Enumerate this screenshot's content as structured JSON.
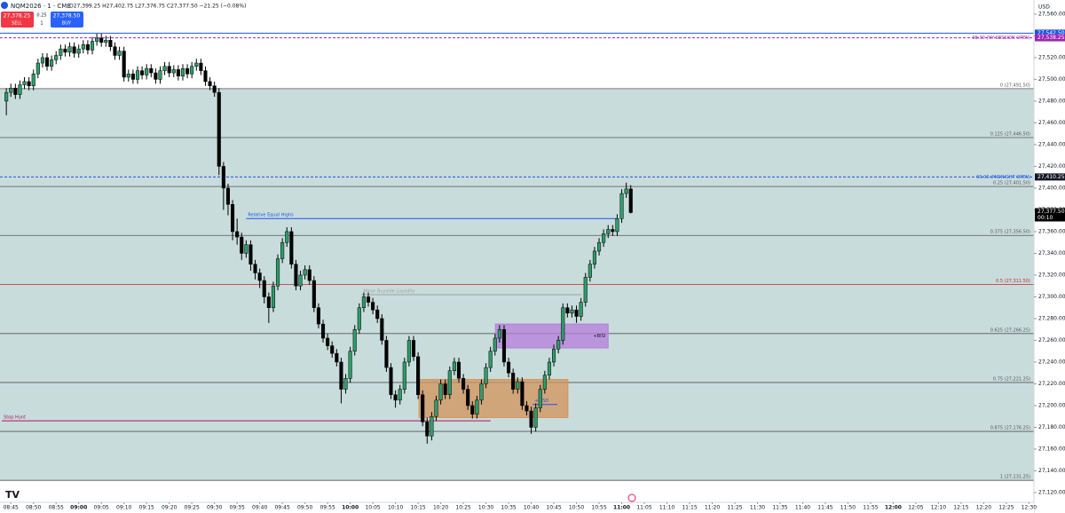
{
  "header": {
    "symbol": "NQM2026 · 1 · CME",
    "ohlc": "O27,399.25 H27,402.75 L27,376.75 C27,377.50 −21.25 (−0.08%)",
    "sell_price": "27,378.25",
    "sell": "SELL",
    "spread": "0.25",
    "quantity": "1",
    "buy_price": "27,378.50",
    "buy": "BUY",
    "currency": "USD"
  },
  "chart_data": {
    "type": "candlestick",
    "up_color": "#2e9d6a",
    "down_color": "#000000",
    "fib_fill": "#c8dcdc",
    "grid": false,
    "x": [
      524,
      525,
      526,
      527,
      528,
      529,
      530,
      531,
      532,
      533,
      534,
      535,
      536,
      537,
      538,
      539,
      540,
      541,
      542,
      543,
      544,
      545,
      546,
      547,
      548,
      549,
      550,
      551,
      552,
      553,
      554,
      555,
      556,
      557,
      558,
      559,
      560,
      561,
      562,
      563,
      564,
      565,
      566,
      567,
      568,
      569,
      570,
      571,
      572,
      573,
      574,
      575,
      576,
      577,
      578,
      579,
      580,
      581,
      582,
      583,
      584,
      585,
      586,
      587,
      588,
      589,
      590,
      591,
      592,
      593,
      594,
      595,
      596,
      597,
      598,
      599,
      600,
      601,
      602,
      603,
      604,
      605,
      606,
      607,
      608,
      609,
      610,
      611,
      612,
      613,
      614,
      615,
      616,
      617,
      618,
      619,
      620,
      621,
      622,
      623,
      624,
      625,
      626,
      627,
      628,
      629,
      630,
      631,
      632,
      633,
      634,
      635,
      636,
      637,
      638,
      639,
      640,
      641,
      642,
      643,
      644,
      645,
      646,
      647,
      648,
      649,
      650,
      651,
      652,
      653,
      654,
      655,
      656,
      657,
      658,
      659,
      660,
      661,
      662
    ],
    "open": [
      27480,
      27488,
      27492,
      27486,
      27495,
      27498,
      27494,
      27505,
      27515,
      27520,
      27512,
      27518,
      27522,
      27528,
      27525,
      27530,
      27524,
      27528,
      27532,
      27527,
      27535,
      27538,
      27534,
      27536,
      27530,
      27522,
      27526,
      27502,
      27505,
      27500,
      27508,
      27504,
      27510,
      27506,
      27500,
      27508,
      27512,
      27506,
      27509,
      27503,
      27510,
      27505,
      27512,
      27515,
      27508,
      27498,
      27494,
      27488,
      27420,
      27400,
      27385,
      27360,
      27355,
      27340,
      27348,
      27330,
      27322,
      27315,
      27300,
      27290,
      27310,
      27335,
      27350,
      27360,
      27330,
      27310,
      27320,
      27325,
      27315,
      27290,
      27275,
      27262,
      27255,
      27248,
      27240,
      27215,
      27225,
      27250,
      27270,
      27290,
      27300,
      27295,
      27288,
      27280,
      27260,
      27235,
      27210,
      27205,
      27215,
      27240,
      27260,
      27245,
      27210,
      27185,
      27172,
      27190,
      27205,
      27220,
      27210,
      27232,
      27240,
      27225,
      27215,
      27200,
      27192,
      27205,
      27220,
      27235,
      27250,
      27262,
      27270,
      27240,
      27230,
      27215,
      27222,
      27200,
      27195,
      27180,
      27198,
      27215,
      27228,
      27240,
      27252,
      27260,
      27290,
      27285,
      27288,
      27282,
      27295,
      27318,
      27330,
      27342,
      27350,
      27358,
      27362,
      27360,
      27372,
      27395,
      27399.25
    ],
    "high": [
      27492,
      27496,
      27496,
      27499,
      27502,
      27502,
      27509,
      27519,
      27524,
      27524,
      27522,
      27526,
      27532,
      27532,
      27534,
      27534,
      27532,
      27536,
      27536,
      27539,
      27542,
      27542,
      27540,
      27540,
      27534,
      27530,
      27530,
      27509,
      27509,
      27512,
      27512,
      27514,
      27514,
      27510,
      27512,
      27516,
      27516,
      27513,
      27513,
      27514,
      27514,
      27516,
      27519,
      27519,
      27512,
      27502,
      27498,
      27492,
      27424,
      27404,
      27389,
      27372,
      27359,
      27352,
      27352,
      27334,
      27326,
      27319,
      27304,
      27314,
      27339,
      27354,
      27364,
      27364,
      27334,
      27324,
      27329,
      27329,
      27319,
      27294,
      27279,
      27266,
      27259,
      27252,
      27244,
      27229,
      27254,
      27274,
      27294,
      27304,
      27304,
      27299,
      27292,
      27284,
      27264,
      27239,
      27214,
      27219,
      27244,
      27264,
      27264,
      27249,
      27214,
      27189,
      27194,
      27209,
      27224,
      27224,
      27236,
      27244,
      27244,
      27229,
      27219,
      27204,
      27209,
      27224,
      27239,
      27254,
      27266,
      27274,
      27274,
      27244,
      27234,
      27226,
      27226,
      27204,
      27199,
      27202,
      27219,
      27232,
      27244,
      27256,
      27264,
      27294,
      27294,
      27292,
      27292,
      27299,
      27322,
      27334,
      27346,
      27354,
      27362,
      27366,
      27366,
      27376,
      27399,
      27405,
      27402.75
    ],
    "low": [
      27467,
      27484,
      27482,
      27482,
      27491,
      27490,
      27490,
      27501,
      27511,
      27508,
      27508,
      27514,
      27518,
      27521,
      27521,
      27520,
      27520,
      27524,
      27523,
      27523,
      27531,
      27530,
      27530,
      27526,
      27518,
      27518,
      27498,
      27498,
      27496,
      27496,
      27500,
      27500,
      27502,
      27496,
      27496,
      27504,
      27502,
      27502,
      27499,
      27499,
      27501,
      27501,
      27508,
      27504,
      27494,
      27490,
      27484,
      27412,
      27380,
      27375,
      27352,
      27348,
      27334,
      27336,
      27324,
      27316,
      27308,
      27294,
      27276,
      27286,
      27306,
      27331,
      27346,
      27326,
      27306,
      27306,
      27316,
      27311,
      27286,
      27271,
      27258,
      27251,
      27244,
      27236,
      27202,
      27211,
      27221,
      27246,
      27266,
      27286,
      27291,
      27284,
      27276,
      27256,
      27231,
      27206,
      27198,
      27201,
      27211,
      27236,
      27241,
      27206,
      27181,
      27165,
      27168,
      27186,
      27201,
      27206,
      27206,
      27228,
      27221,
      27211,
      27196,
      27188,
      27188,
      27201,
      27216,
      27231,
      27246,
      27258,
      27236,
      27226,
      27211,
      27211,
      27196,
      27191,
      27174,
      27176,
      27194,
      27211,
      27224,
      27236,
      27248,
      27256,
      27281,
      27281,
      27276,
      27278,
      27291,
      27314,
      27326,
      27338,
      27346,
      27354,
      27356,
      27356,
      27368,
      27391,
      27376.75
    ],
    "close": [
      27488,
      27492,
      27486,
      27495,
      27498,
      27494,
      27505,
      27515,
      27520,
      27512,
      27518,
      27522,
      27528,
      27525,
      27530,
      27524,
      27528,
      27532,
      27527,
      27535,
      27538,
      27534,
      27536,
      27530,
      27522,
      27526,
      27502,
      27505,
      27500,
      27508,
      27504,
      27510,
      27506,
      27500,
      27508,
      27512,
      27506,
      27509,
      27503,
      27510,
      27505,
      27512,
      27515,
      27508,
      27498,
      27494,
      27488,
      27420,
      27400,
      27385,
      27360,
      27355,
      27340,
      27348,
      27330,
      27322,
      27315,
      27300,
      27290,
      27310,
      27335,
      27350,
      27360,
      27330,
      27310,
      27320,
      27325,
      27315,
      27290,
      27275,
      27262,
      27255,
      27248,
      27240,
      27215,
      27225,
      27250,
      27270,
      27290,
      27300,
      27295,
      27288,
      27280,
      27260,
      27235,
      27210,
      27205,
      27215,
      27240,
      27260,
      27245,
      27210,
      27185,
      27172,
      27190,
      27205,
      27220,
      27210,
      27232,
      27240,
      27225,
      27215,
      27200,
      27192,
      27205,
      27220,
      27235,
      27250,
      27262,
      27270,
      27240,
      27230,
      27215,
      27222,
      27200,
      27195,
      27180,
      27198,
      27215,
      27228,
      27240,
      27252,
      27260,
      27290,
      27285,
      27288,
      27282,
      27295,
      27318,
      27330,
      27342,
      27350,
      27358,
      27362,
      27360,
      27372,
      27395,
      27399.25,
      27377.5
    ],
    "xlim": [
      522.6,
      751.1
    ],
    "xticks": [
      {
        "value": 525,
        "label": "08:45"
      },
      {
        "value": 530,
        "label": "08:50"
      },
      {
        "value": 535,
        "label": "08:55"
      },
      {
        "value": 540,
        "label": "09:00"
      },
      {
        "value": 545,
        "label": "09:05"
      },
      {
        "value": 550,
        "label": "09:10"
      },
      {
        "value": 555,
        "label": "09:15"
      },
      {
        "value": 560,
        "label": "09:20"
      },
      {
        "value": 565,
        "label": "09:25"
      },
      {
        "value": 570,
        "label": "09:30"
      },
      {
        "value": 575,
        "label": "09:35"
      },
      {
        "value": 580,
        "label": "09:40"
      },
      {
        "value": 585,
        "label": "09:45"
      },
      {
        "value": 590,
        "label": "09:50"
      },
      {
        "value": 595,
        "label": "09:55"
      },
      {
        "value": 600,
        "label": "10:00"
      },
      {
        "value": 605,
        "label": "10:05"
      },
      {
        "value": 610,
        "label": "10:10"
      },
      {
        "value": 615,
        "label": "10:15"
      },
      {
        "value": 620,
        "label": "10:20"
      },
      {
        "value": 625,
        "label": "10:25"
      },
      {
        "value": 630,
        "label": "10:30"
      },
      {
        "value": 635,
        "label": "10:35"
      },
      {
        "value": 640,
        "label": "10:40"
      },
      {
        "value": 645,
        "label": "10:45"
      },
      {
        "value": 650,
        "label": "10:50"
      },
      {
        "value": 655,
        "label": "10:55"
      },
      {
        "value": 660,
        "label": "11:00"
      },
      {
        "value": 665,
        "label": "11:05"
      },
      {
        "value": 670,
        "label": "11:10"
      },
      {
        "value": 675,
        "label": "11:15"
      },
      {
        "value": 680,
        "label": "11:20"
      },
      {
        "value": 685,
        "label": "11:25"
      },
      {
        "value": 690,
        "label": "11:30"
      },
      {
        "value": 695,
        "label": "11:35"
      },
      {
        "value": 700,
        "label": "11:40"
      },
      {
        "value": 705,
        "label": "11:45"
      },
      {
        "value": 710,
        "label": "11:50"
      },
      {
        "value": 715,
        "label": "11:55"
      },
      {
        "value": 720,
        "label": "12:00"
      },
      {
        "value": 725,
        "label": "12:05"
      },
      {
        "value": 730,
        "label": "12:10"
      },
      {
        "value": 735,
        "label": "12:15"
      },
      {
        "value": 740,
        "label": "12:20"
      },
      {
        "value": 745,
        "label": "12:25"
      },
      {
        "value": 750,
        "label": "12:30"
      }
    ],
    "ylim": [
      27111,
      27573
    ],
    "yticks": [
      {
        "value": 27560,
        "label": "27,560.00"
      },
      {
        "value": 27540,
        "label": "27,540.00"
      },
      {
        "value": 27520,
        "label": "27,520.00"
      },
      {
        "value": 27500,
        "label": "27,500.00"
      },
      {
        "value": 27480,
        "label": "27,480.00"
      },
      {
        "value": 27460,
        "label": "27,460.00"
      },
      {
        "value": 27440,
        "label": "27,440.00"
      },
      {
        "value": 27420,
        "label": "27,420.00"
      },
      {
        "value": 27400,
        "label": "27,400.00"
      },
      {
        "value": 27380,
        "label": "27,380.00"
      },
      {
        "value": 27360,
        "label": "27,360.00"
      },
      {
        "value": 27340,
        "label": "27,340.00"
      },
      {
        "value": 27320,
        "label": "27,320.00"
      },
      {
        "value": 27300,
        "label": "27,300.00"
      },
      {
        "value": 27280,
        "label": "27,280.00"
      },
      {
        "value": 27260,
        "label": "27,260.00"
      },
      {
        "value": 27240,
        "label": "27,240.00"
      },
      {
        "value": 27220,
        "label": "27,220.00"
      },
      {
        "value": 27200,
        "label": "27,200.00"
      },
      {
        "value": 27180,
        "label": "27,180.00"
      },
      {
        "value": 27160,
        "label": "27,160.00"
      },
      {
        "value": 27140,
        "label": "27,140.00"
      },
      {
        "value": 27120,
        "label": "27,120.00"
      }
    ],
    "levels": [
      {
        "label": "0 (27,491.50)",
        "value": 27491.5,
        "color": "#555555"
      },
      {
        "label": "0.125 (27,446.50)",
        "value": 27446.5,
        "color": "#555555"
      },
      {
        "label": "0.25 (27,401.50)",
        "value": 27401.5,
        "color": "#555555"
      },
      {
        "label": "0.375 (27,356.50)",
        "value": 27356.5,
        "color": "#555555"
      },
      {
        "label": "0.5 (27,311.50)",
        "value": 27311.5,
        "color": "#c62828"
      },
      {
        "label": "0.625 (27,266.25)",
        "value": 27266.25,
        "color": "#555555"
      },
      {
        "label": "0.75 (27,221.25)",
        "value": 27221.25,
        "color": "#555555"
      },
      {
        "label": "0.875 (27,176.25)",
        "value": 27176.25,
        "color": "#555555"
      },
      {
        "label": "1 (27,131.25)",
        "value": 27131.25,
        "color": "#555555"
      }
    ],
    "price_lines": [
      {
        "value": 27542.5,
        "price_label": "27,542.50",
        "color": "#1e53e5",
        "dashed": false
      },
      {
        "label": "08:30 (NY SESSION OPEN)",
        "value": 27538.25,
        "price_label": "27,538.25",
        "color": "#9c27b0",
        "dashed": true
      },
      {
        "label": "00:00 (MIDNIGHT OPEN)",
        "value": 27410.25,
        "price_label": "27,410.25",
        "color": "#1e53e5",
        "dashed": true
      }
    ],
    "last_price": {
      "value": 27377.5,
      "price_label": "27,377.50",
      "countdown": "00:10"
    },
    "annotations": [
      {
        "label": "Relative Equal Highs",
        "value": 27372,
        "x": [
          577,
          659
        ],
        "color": "#1e53e5"
      },
      {
        "label": "Minor Buyside Liquidity",
        "value": 27302,
        "x": [
          602.5,
          651
        ],
        "color": "#9e9e9e"
      },
      {
        "label": "Stop Hunt",
        "value": 27186,
        "x": [
          523,
          631
        ],
        "color": "#b0174f"
      },
      {
        "label": "+CISD",
        "value": 27201,
        "x": [
          640.3,
          645.8
        ],
        "color": "#1e53e5"
      }
    ],
    "boxes": [
      {
        "label": "+BISI",
        "top": 27275,
        "bottom": 27253,
        "x": [
          632.1,
          657
        ],
        "color": "#b57edc"
      },
      {
        "top": 27224,
        "bottom": 27189,
        "x": [
          615.2,
          648.1
        ],
        "color": "#d4935a"
      }
    ]
  }
}
